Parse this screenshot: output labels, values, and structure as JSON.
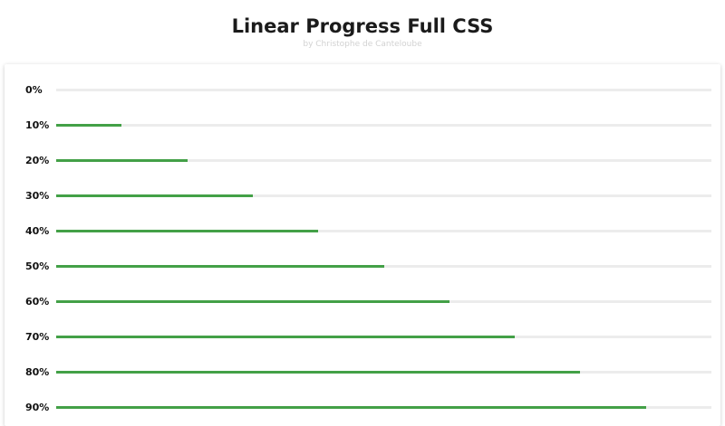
{
  "header": {
    "title": "Linear Progress Full CSS",
    "subtitle": "by Christophe de Canteloube"
  },
  "colors": {
    "fill": "#43a047",
    "track": "#ececec"
  },
  "progress_bars": [
    {
      "label": "0%",
      "value": 0
    },
    {
      "label": "10%",
      "value": 10
    },
    {
      "label": "20%",
      "value": 20
    },
    {
      "label": "30%",
      "value": 30
    },
    {
      "label": "40%",
      "value": 40
    },
    {
      "label": "50%",
      "value": 50
    },
    {
      "label": "60%",
      "value": 60
    },
    {
      "label": "70%",
      "value": 70
    },
    {
      "label": "80%",
      "value": 80
    },
    {
      "label": "90%",
      "value": 90
    }
  ]
}
